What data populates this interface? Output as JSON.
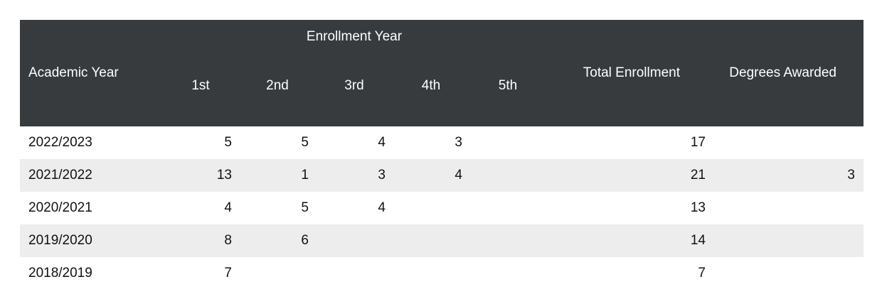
{
  "table": {
    "headers": {
      "academic_year": "Academic Year",
      "enrollment_year": "Enrollment Year",
      "sub": [
        "1st",
        "2nd",
        "3rd",
        "4th",
        "5th"
      ],
      "total": "Total Enrollment",
      "degrees": "Degrees Awarded"
    },
    "rows": [
      {
        "year": "2022/2023",
        "e1": "5",
        "e2": "5",
        "e3": "4",
        "e4": "3",
        "e5": "",
        "total": "17",
        "degrees": ""
      },
      {
        "year": "2021/2022",
        "e1": "13",
        "e2": "1",
        "e3": "3",
        "e4": "4",
        "e5": "",
        "total": "21",
        "degrees": "3"
      },
      {
        "year": "2020/2021",
        "e1": "4",
        "e2": "5",
        "e3": "4",
        "e4": "",
        "e5": "",
        "total": "13",
        "degrees": ""
      },
      {
        "year": "2019/2020",
        "e1": "8",
        "e2": "6",
        "e3": "",
        "e4": "",
        "e5": "",
        "total": "14",
        "degrees": ""
      },
      {
        "year": "2018/2019",
        "e1": "7",
        "e2": "",
        "e3": "",
        "e4": "",
        "e5": "",
        "total": "7",
        "degrees": ""
      }
    ]
  },
  "colors": {
    "header_bg": "#373b3e",
    "header_text": "#ffffff",
    "stripe": "#ededed"
  }
}
